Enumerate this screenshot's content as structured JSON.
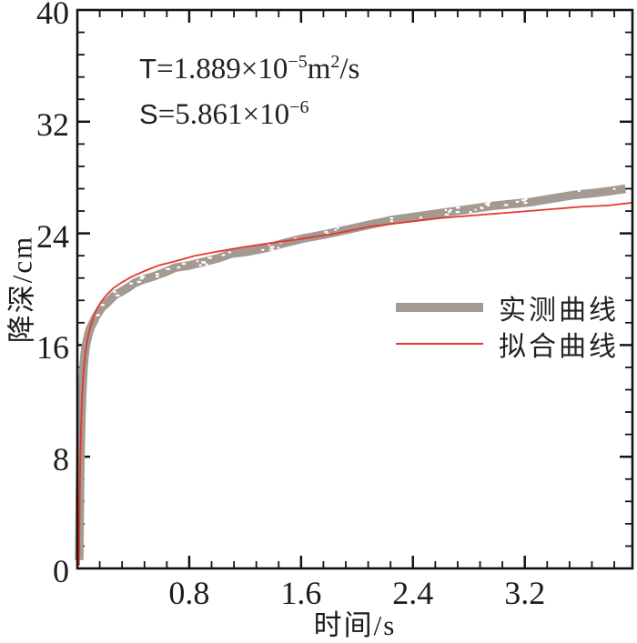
{
  "colors": {
    "measured_gray": "#a39a92",
    "fitted_red": "#e4392c",
    "axis_black": "#141414",
    "background": "#ffffff"
  },
  "annotation": {
    "t": {
      "var": "T",
      "val": "=1.889×10",
      "exp": "−5",
      "unit": "m",
      "unit_exp": "2",
      "unit_suffix": "/s"
    },
    "s": {
      "var": "S",
      "val": "=5.861×10",
      "exp": "−6"
    }
  },
  "legend": {
    "items": [
      {
        "label": "实测曲线",
        "style": "thick-gray-band"
      },
      {
        "label": "拟合曲线",
        "style": "thin-red-line"
      }
    ]
  },
  "chart_data": {
    "type": "line",
    "title": "",
    "xlabel": "时间/s",
    "ylabel": "降深/cm",
    "xlim": [
      0,
      3.97
    ],
    "ylim": [
      0,
      40
    ],
    "x_major_ticks": [
      0.8,
      1.6,
      2.4,
      3.2
    ],
    "x_tick_labels": [
      "0.8",
      "1.6",
      "2.4",
      "3.2"
    ],
    "x_minor_step": 0.16,
    "y_major_ticks": [
      0,
      8,
      16,
      24,
      32,
      40
    ],
    "y_tick_labels": [
      "0",
      "8",
      "16",
      "24",
      "32",
      "40"
    ],
    "y_minor_step": 1.6,
    "grid": false,
    "legend_position": "center-right",
    "parameters": {
      "T": "1.889×10−5 m2/s",
      "S": "5.861×10−6"
    },
    "series": [
      {
        "name": "实测曲线",
        "style": "band",
        "color": "#a39a92",
        "stroke_width": 9.5,
        "points": [
          [
            0.013,
            0.6
          ],
          [
            0.014,
            1.8
          ],
          [
            0.016,
            3.5
          ],
          [
            0.018,
            5.2
          ],
          [
            0.02,
            6.8
          ],
          [
            0.023,
            8.4
          ],
          [
            0.026,
            9.8
          ],
          [
            0.03,
            11.2
          ],
          [
            0.034,
            12.4
          ],
          [
            0.039,
            13.5
          ],
          [
            0.045,
            14.5
          ],
          [
            0.052,
            15.3
          ],
          [
            0.06,
            15.9
          ],
          [
            0.07,
            16.4
          ],
          [
            0.082,
            16.9
          ],
          [
            0.096,
            17.3
          ],
          [
            0.112,
            17.6
          ],
          [
            0.13,
            18.0
          ],
          [
            0.15,
            18.3
          ],
          [
            0.175,
            18.7
          ],
          [
            0.2,
            18.9
          ],
          [
            0.23,
            19.2
          ],
          [
            0.27,
            19.6
          ],
          [
            0.31,
            19.8
          ],
          [
            0.36,
            20.1
          ],
          [
            0.41,
            20.45
          ],
          [
            0.47,
            20.7
          ],
          [
            0.54,
            20.9
          ],
          [
            0.62,
            21.2
          ],
          [
            0.7,
            21.55
          ],
          [
            0.8,
            21.7
          ],
          [
            0.9,
            21.95
          ],
          [
            1.0,
            22.2
          ],
          [
            1.1,
            22.55
          ],
          [
            1.22,
            22.7
          ],
          [
            1.35,
            22.95
          ],
          [
            1.48,
            23.3
          ],
          [
            1.62,
            23.65
          ],
          [
            1.76,
            23.9
          ],
          [
            1.92,
            24.25
          ],
          [
            2.08,
            24.6
          ],
          [
            2.25,
            24.95
          ],
          [
            2.42,
            25.2
          ],
          [
            2.6,
            25.45
          ],
          [
            2.78,
            25.7
          ],
          [
            2.95,
            25.95
          ],
          [
            3.1,
            26.1
          ],
          [
            3.25,
            26.25
          ],
          [
            3.4,
            26.5
          ],
          [
            3.55,
            26.75
          ],
          [
            3.7,
            26.9
          ],
          [
            3.82,
            27.05
          ],
          [
            3.92,
            27.2
          ]
        ]
      },
      {
        "name": "拟合曲线",
        "style": "line",
        "color": "#e4392c",
        "stroke_width": 1.8,
        "points": [
          [
            0.012,
            0.2
          ],
          [
            0.013,
            1.5
          ],
          [
            0.015,
            3.2
          ],
          [
            0.017,
            5.0
          ],
          [
            0.019,
            6.6
          ],
          [
            0.022,
            8.2
          ],
          [
            0.025,
            9.6
          ],
          [
            0.029,
            11.0
          ],
          [
            0.034,
            12.3
          ],
          [
            0.04,
            13.4
          ],
          [
            0.047,
            14.4
          ],
          [
            0.056,
            15.3
          ],
          [
            0.067,
            16.1
          ],
          [
            0.08,
            16.8
          ],
          [
            0.096,
            17.4
          ],
          [
            0.115,
            18.0
          ],
          [
            0.14,
            18.6
          ],
          [
            0.17,
            19.1
          ],
          [
            0.21,
            19.6
          ],
          [
            0.26,
            20.1
          ],
          [
            0.32,
            20.5
          ],
          [
            0.39,
            20.9
          ],
          [
            0.48,
            21.3
          ],
          [
            0.58,
            21.7
          ],
          [
            0.7,
            22.0
          ],
          [
            0.84,
            22.4
          ],
          [
            1.0,
            22.7
          ],
          [
            1.18,
            23.0
          ],
          [
            1.38,
            23.3
          ],
          [
            1.6,
            23.6
          ],
          [
            1.85,
            24.0
          ],
          [
            2.1,
            24.5
          ],
          [
            2.35,
            24.8
          ],
          [
            2.6,
            25.1
          ],
          [
            2.85,
            25.3
          ],
          [
            3.1,
            25.5
          ],
          [
            3.35,
            25.7
          ],
          [
            3.6,
            25.9
          ],
          [
            3.8,
            26.0
          ],
          [
            3.97,
            26.2
          ]
        ]
      }
    ]
  }
}
